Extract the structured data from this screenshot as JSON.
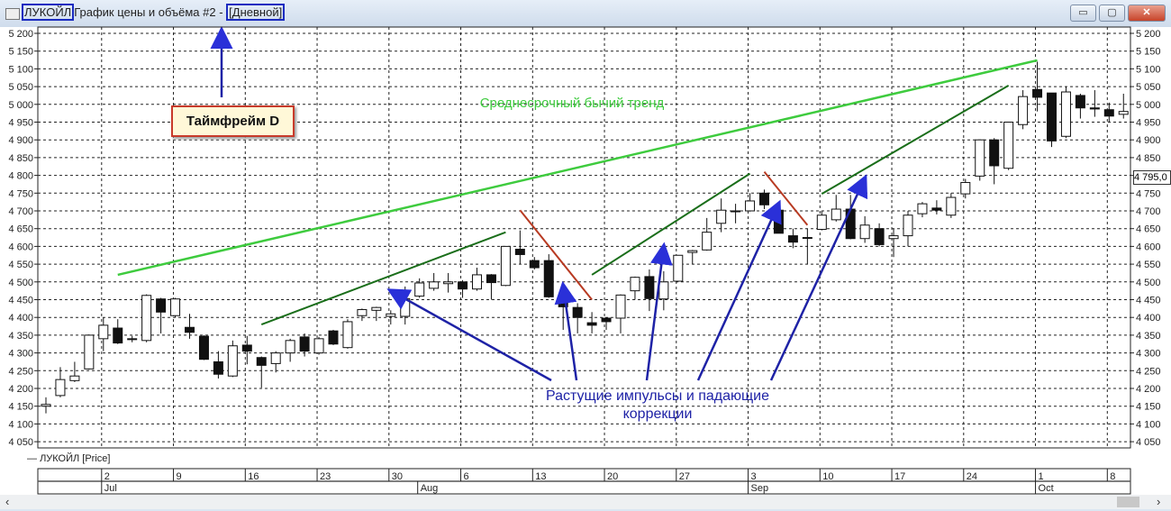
{
  "window": {
    "symbol": "ЛУКОЙЛ",
    "title": "График цены и объёма #2 -",
    "timeframe": "[Дневной]",
    "minimize": "▭",
    "maximize": "▢",
    "close": "✕"
  },
  "legend": {
    "label": "ЛУКОЙЛ [Price]"
  },
  "price_marker": "4 795,0",
  "annotations": {
    "timeframe_box": "Таймфрейм D",
    "trend_text": "Среднесрочный бычий тренд",
    "impulse_text": "Растущие импульсы и падающие коррекции",
    "colors": {
      "trend": "#3ecb3e",
      "impulse": "#1a6e1a",
      "correction": "#b83a22",
      "arrows": "#1e22a6",
      "highlight": "#1a2bc0"
    }
  },
  "chart_data": {
    "type": "candlestick",
    "ylim": [
      4050,
      5200
    ],
    "yticks": [
      "4 050",
      "4 100",
      "4 150",
      "4 200",
      "4 250",
      "4 300",
      "4 350",
      "4 400",
      "4 450",
      "4 500",
      "4 550",
      "4 600",
      "4 650",
      "4 700",
      "4 750",
      "4 800",
      "4 850",
      "4 900",
      "4 950",
      "5 000",
      "5 050",
      "5 100",
      "5 150",
      "5 200"
    ],
    "grid": true,
    "week_labels": [
      "2",
      "9",
      "16",
      "23",
      "30",
      "6",
      "13",
      "20",
      "27",
      "3",
      "10",
      "17",
      "24",
      "1",
      "8"
    ],
    "month_labels": [
      "Jul",
      "Aug",
      "Sep",
      "Oct"
    ],
    "candles": [
      [
        "2018-06-26",
        4150,
        4175,
        4130,
        4155
      ],
      [
        "2018-06-27",
        4180,
        4260,
        4175,
        4225
      ],
      [
        "2018-06-28",
        4222,
        4275,
        4218,
        4235
      ],
      [
        "2018-06-29",
        4255,
        4352,
        4253,
        4350
      ],
      [
        "2018-07-02",
        4340,
        4400,
        4305,
        4378
      ],
      [
        "2018-07-03",
        4370,
        4395,
        4325,
        4328
      ],
      [
        "2018-07-04",
        4338,
        4348,
        4330,
        4340
      ],
      [
        "2018-07-05",
        4335,
        4465,
        4330,
        4462
      ],
      [
        "2018-07-06",
        4452,
        4455,
        4355,
        4415
      ],
      [
        "2018-07-09",
        4405,
        4455,
        4400,
        4452
      ],
      [
        "2018-07-10",
        4372,
        4410,
        4340,
        4358
      ],
      [
        "2018-07-11",
        4347,
        4350,
        4280,
        4282
      ],
      [
        "2018-07-12",
        4275,
        4305,
        4228,
        4240
      ],
      [
        "2018-07-13",
        4235,
        4335,
        4232,
        4320
      ],
      [
        "2018-07-16",
        4322,
        4348,
        4268,
        4305
      ],
      [
        "2018-07-17",
        4287,
        4290,
        4202,
        4265
      ],
      [
        "2018-07-18",
        4270,
        4305,
        4245,
        4300
      ],
      [
        "2018-07-19",
        4300,
        4340,
        4275,
        4335
      ],
      [
        "2018-07-20",
        4345,
        4355,
        4290,
        4305
      ],
      [
        "2018-07-23",
        4300,
        4345,
        4295,
        4340
      ],
      [
        "2018-07-24",
        4362,
        4365,
        4322,
        4325
      ],
      [
        "2018-07-25",
        4315,
        4395,
        4312,
        4388
      ],
      [
        "2018-07-26",
        4405,
        4425,
        4390,
        4422
      ],
      [
        "2018-07-27",
        4420,
        4430,
        4390,
        4428
      ],
      [
        "2018-07-30",
        4403,
        4420,
        4380,
        4410
      ],
      [
        "2018-07-31",
        4403,
        4487,
        4380,
        4453
      ],
      [
        "2018-08-01",
        4460,
        4510,
        4455,
        4497
      ],
      [
        "2018-08-02",
        4482,
        4525,
        4475,
        4500
      ],
      [
        "2018-08-03",
        4495,
        4525,
        4470,
        4500
      ],
      [
        "2018-08-06",
        4500,
        4505,
        4455,
        4480
      ],
      [
        "2018-08-07",
        4480,
        4540,
        4475,
        4520
      ],
      [
        "2018-08-08",
        4520,
        4522,
        4450,
        4498
      ],
      [
        "2018-08-09",
        4490,
        4600,
        4488,
        4600
      ],
      [
        "2018-08-10",
        4592,
        4645,
        4550,
        4577
      ],
      [
        "2018-08-13",
        4560,
        4570,
        4535,
        4540
      ],
      [
        "2018-08-14",
        4560,
        4578,
        4455,
        4458
      ],
      [
        "2018-08-15",
        4448,
        4450,
        4365,
        4430
      ],
      [
        "2018-08-16",
        4428,
        4440,
        4355,
        4400
      ],
      [
        "2018-08-17",
        4385,
        4415,
        4355,
        4378
      ],
      [
        "2018-08-20",
        4398,
        4400,
        4365,
        4388
      ],
      [
        "2018-08-21",
        4398,
        4465,
        4355,
        4463
      ],
      [
        "2018-08-22",
        4475,
        4515,
        4450,
        4513
      ],
      [
        "2018-08-23",
        4515,
        4535,
        4418,
        4453
      ],
      [
        "2018-08-24",
        4452,
        4530,
        4420,
        4500
      ],
      [
        "2018-08-27",
        4502,
        4575,
        4500,
        4575
      ],
      [
        "2018-08-28",
        4583,
        4590,
        4550,
        4588
      ],
      [
        "2018-08-29",
        4590,
        4680,
        4588,
        4640
      ],
      [
        "2018-08-30",
        4665,
        4735,
        4640,
        4702
      ],
      [
        "2018-08-31",
        4700,
        4720,
        4665,
        4700
      ],
      [
        "2018-09-03",
        4700,
        4750,
        4698,
        4728
      ],
      [
        "2018-09-04",
        4750,
        4760,
        4705,
        4717
      ],
      [
        "2018-09-05",
        4702,
        4705,
        4637,
        4637
      ],
      [
        "2018-09-06",
        4630,
        4650,
        4595,
        4612
      ],
      [
        "2018-09-07",
        4625,
        4650,
        4550,
        4625
      ],
      [
        "2018-09-10",
        4648,
        4700,
        4645,
        4688
      ],
      [
        "2018-09-11",
        4675,
        4745,
        4670,
        4705
      ],
      [
        "2018-09-12",
        4705,
        4745,
        4620,
        4622
      ],
      [
        "2018-09-13",
        4622,
        4685,
        4610,
        4660
      ],
      [
        "2018-09-14",
        4650,
        4665,
        4600,
        4605
      ],
      [
        "2018-09-17",
        4622,
        4650,
        4570,
        4630
      ],
      [
        "2018-09-18",
        4630,
        4700,
        4600,
        4688
      ],
      [
        "2018-09-19",
        4692,
        4725,
        4682,
        4720
      ],
      [
        "2018-09-20",
        4708,
        4730,
        4690,
        4702
      ],
      [
        "2018-09-21",
        4688,
        4750,
        4680,
        4738
      ],
      [
        "2018-09-24",
        4748,
        4790,
        4735,
        4780
      ],
      [
        "2018-09-25",
        4798,
        4900,
        4785,
        4900
      ],
      [
        "2018-09-26",
        4900,
        4905,
        4775,
        4827
      ],
      [
        "2018-09-27",
        4820,
        4950,
        4815,
        4950
      ],
      [
        "2018-09-28",
        4943,
        5040,
        4930,
        5022
      ],
      [
        "2018-10-01",
        5042,
        5120,
        4980,
        5020
      ],
      [
        "2018-10-02",
        5032,
        5032,
        4880,
        4897
      ],
      [
        "2018-10-03",
        4910,
        5050,
        4905,
        5035
      ],
      [
        "2018-10-04",
        5025,
        5030,
        4960,
        4990
      ],
      [
        "2018-10-05",
        4990,
        5040,
        4965,
        4987
      ],
      [
        "2018-10-08",
        4985,
        5005,
        4950,
        4967
      ],
      [
        "2018-10-09",
        4972,
        5030,
        4960,
        4980
      ]
    ],
    "trendlines": [
      {
        "kind": "trend",
        "from": [
          "2018-07-03",
          4520
        ],
        "to": [
          "2018-10-01",
          5124
        ]
      },
      {
        "kind": "impulse",
        "from": [
          "2018-07-17",
          4380
        ],
        "to": [
          "2018-08-09",
          4640
        ]
      },
      {
        "kind": "impulse",
        "from": [
          "2018-08-17",
          4520
        ],
        "to": [
          "2018-09-03",
          4805
        ]
      },
      {
        "kind": "impulse",
        "from": [
          "2018-09-10",
          4748
        ],
        "to": [
          "2018-09-27",
          5053
        ]
      },
      {
        "kind": "correction",
        "from": [
          "2018-08-10",
          4702
        ],
        "to": [
          "2018-08-17",
          4450
        ]
      },
      {
        "kind": "correction",
        "from": [
          "2018-09-04",
          4810
        ],
        "to": [
          "2018-09-07",
          4660
        ]
      }
    ],
    "arrow_targets": [
      [
        "2018-07-30",
        4475
      ],
      [
        "2018-08-15",
        4490
      ],
      [
        "2018-08-24",
        4600
      ],
      [
        "2018-09-05",
        4720
      ],
      [
        "2018-09-13",
        4792
      ]
    ]
  }
}
